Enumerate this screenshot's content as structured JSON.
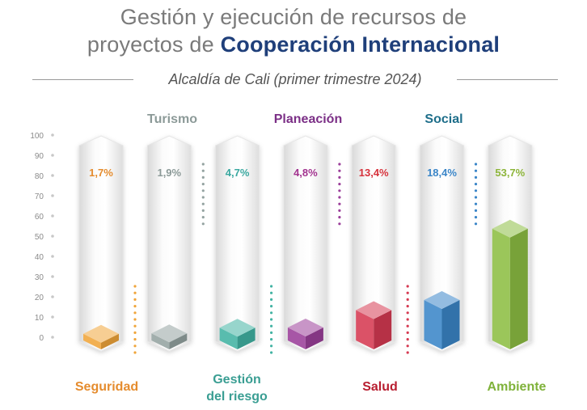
{
  "header": {
    "title_line1": "Gestión y ejecución de recursos de",
    "title_line2_prefix": "proyectos de ",
    "title_line2_bold": "Cooperación Internacional",
    "subtitle": "Alcaldía de Cali (primer trimestre 2024)"
  },
  "chart_data": {
    "type": "bar",
    "title": "Gestión y ejecución de recursos de proyectos de Cooperación Internacional",
    "subtitle": "Alcaldía de Cali (primer trimestre 2024)",
    "ylim": [
      0,
      100
    ],
    "yticks": [
      "0",
      "10",
      "20",
      "30",
      "40",
      "50",
      "60",
      "70",
      "80",
      "90",
      "100"
    ],
    "grid": false,
    "categories": [
      "Seguridad",
      "Turismo",
      "Gestión del riesgo",
      "Planeación",
      "Salud",
      "Social",
      "Ambiente"
    ],
    "values": [
      1.7,
      1.9,
      4.7,
      4.8,
      13.4,
      18.4,
      53.7
    ],
    "value_labels": [
      "1,7%",
      "1,9%",
      "4,7%",
      "4,8%",
      "13,4%",
      "18,4%",
      "53,7%"
    ],
    "label_rows": [
      "bottom",
      "top",
      "bottom",
      "top",
      "bottom",
      "top",
      "bottom"
    ],
    "colors": [
      "#f0a53a",
      "#94a3a1",
      "#42b3a3",
      "#9b3f9a",
      "#d63a52",
      "#3b86c8",
      "#8dbe43"
    ],
    "label_colors": [
      "#e58c2e",
      "#8c9a98",
      "#3a9e93",
      "#7b2f86",
      "#b81e30",
      "#1e6e8a",
      "#7fb23a"
    ],
    "value_label_colors": [
      "#e58c2e",
      "#8c9a98",
      "#3aa8a0",
      "#a2338f",
      "#d6323c",
      "#3b86c8",
      "#8db53a"
    ]
  }
}
